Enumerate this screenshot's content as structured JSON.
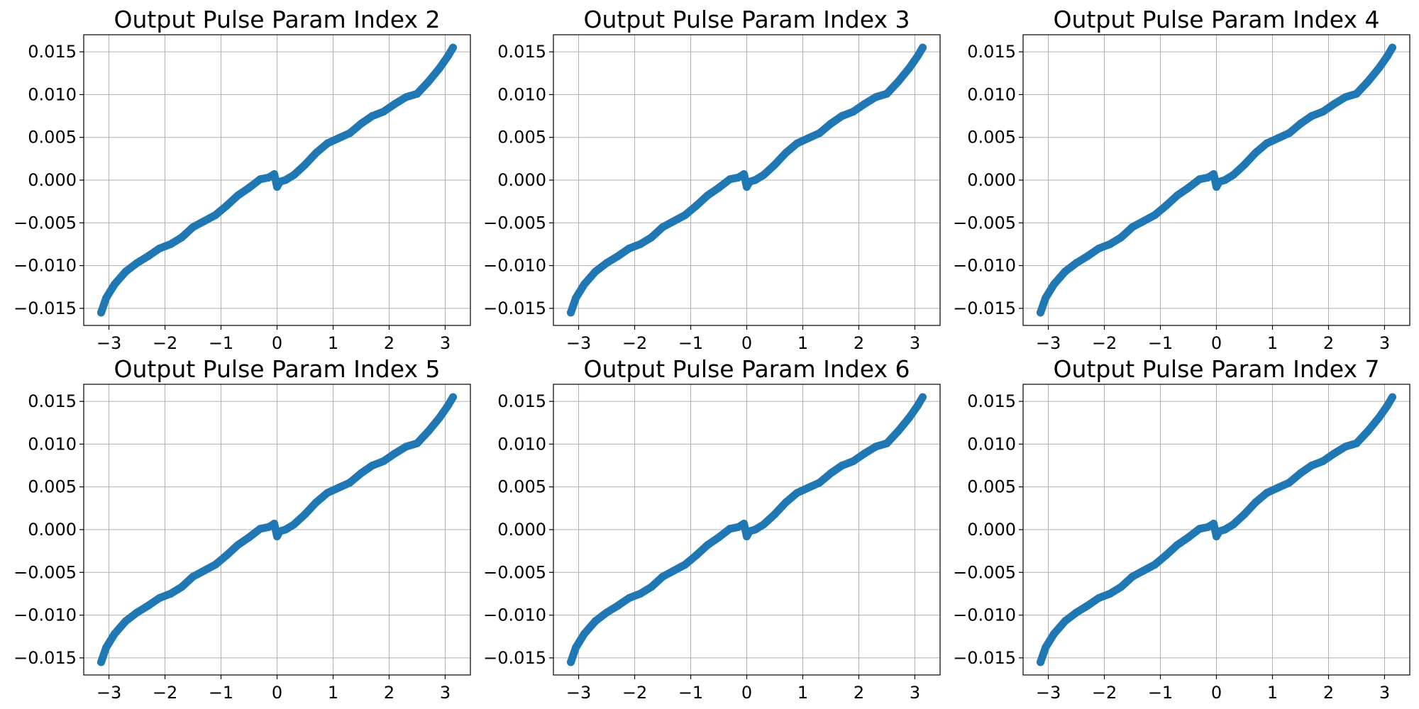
{
  "chart_data": [
    {
      "type": "scatter",
      "title": "Output Pulse Param Index 2",
      "xlim": [
        -3.45,
        3.45
      ],
      "ylim": [
        -0.017,
        0.017
      ],
      "xticks": [
        -3,
        -2,
        -1,
        0,
        1,
        2,
        3
      ],
      "xtick_labels": [
        "−3",
        "−2",
        "−1",
        "0",
        "1",
        "2",
        "3"
      ],
      "yticks": [
        -0.015,
        -0.01,
        -0.005,
        0,
        0.005,
        0.01,
        0.015
      ],
      "ytick_labels": [
        "−0.015",
        "−0.010",
        "−0.005",
        "0.000",
        "0.005",
        "0.010",
        "0.015"
      ],
      "grid": true,
      "series": [
        {
          "color": "#1f77b4",
          "x": [
            -3.14,
            -3.05,
            -2.9,
            -2.7,
            -2.5,
            -2.3,
            -2.1,
            -1.9,
            -1.7,
            -1.5,
            -1.3,
            -1.1,
            -0.9,
            -0.7,
            -0.5,
            -0.3,
            -0.15,
            -0.05,
            0.0,
            0.05,
            0.15,
            0.3,
            0.5,
            0.7,
            0.9,
            1.1,
            1.3,
            1.5,
            1.7,
            1.9,
            2.1,
            2.3,
            2.5,
            2.7,
            2.9,
            3.05,
            3.14
          ],
          "y": [
            -0.0155,
            -0.0138,
            -0.0122,
            -0.0107,
            -0.0097,
            -0.0089,
            -0.008,
            -0.0075,
            -0.0067,
            -0.0055,
            -0.0048,
            -0.0041,
            -0.003,
            -0.0018,
            -0.0009,
            0.0001,
            0.0003,
            0.0007,
            -0.0008,
            -0.0002,
            0.0,
            0.0006,
            0.0018,
            0.0032,
            0.0043,
            0.0049,
            0.0055,
            0.0066,
            0.0075,
            0.008,
            0.0089,
            0.0097,
            0.0101,
            0.0115,
            0.0131,
            0.0145,
            0.0155
          ]
        }
      ]
    },
    {
      "type": "scatter",
      "title": "Output Pulse Param Index 3",
      "xlim": [
        -3.45,
        3.45
      ],
      "ylim": [
        -0.017,
        0.017
      ],
      "xticks": [
        -3,
        -2,
        -1,
        0,
        1,
        2,
        3
      ],
      "xtick_labels": [
        "−3",
        "−2",
        "−1",
        "0",
        "1",
        "2",
        "3"
      ],
      "yticks": [
        -0.015,
        -0.01,
        -0.005,
        0,
        0.005,
        0.01,
        0.015
      ],
      "ytick_labels": [
        "−0.015",
        "−0.010",
        "−0.005",
        "0.000",
        "0.005",
        "0.010",
        "0.015"
      ],
      "grid": true,
      "series": [
        {
          "color": "#1f77b4",
          "x": [
            -3.14,
            -3.05,
            -2.9,
            -2.7,
            -2.5,
            -2.3,
            -2.1,
            -1.9,
            -1.7,
            -1.5,
            -1.3,
            -1.1,
            -0.9,
            -0.7,
            -0.5,
            -0.3,
            -0.15,
            -0.05,
            0.0,
            0.05,
            0.15,
            0.3,
            0.5,
            0.7,
            0.9,
            1.1,
            1.3,
            1.5,
            1.7,
            1.9,
            2.1,
            2.3,
            2.5,
            2.7,
            2.9,
            3.05,
            3.14
          ],
          "y": [
            -0.0155,
            -0.0138,
            -0.0122,
            -0.0107,
            -0.0097,
            -0.0089,
            -0.008,
            -0.0075,
            -0.0067,
            -0.0055,
            -0.0048,
            -0.0041,
            -0.003,
            -0.0018,
            -0.0009,
            0.0001,
            0.0003,
            0.0007,
            -0.0008,
            -0.0002,
            0.0,
            0.0006,
            0.0018,
            0.0032,
            0.0043,
            0.0049,
            0.0055,
            0.0066,
            0.0075,
            0.008,
            0.0089,
            0.0097,
            0.0101,
            0.0115,
            0.0131,
            0.0145,
            0.0155
          ]
        }
      ]
    },
    {
      "type": "scatter",
      "title": "Output Pulse Param Index 4",
      "xlim": [
        -3.45,
        3.45
      ],
      "ylim": [
        -0.017,
        0.017
      ],
      "xticks": [
        -3,
        -2,
        -1,
        0,
        1,
        2,
        3
      ],
      "xtick_labels": [
        "−3",
        "−2",
        "−1",
        "0",
        "1",
        "2",
        "3"
      ],
      "yticks": [
        -0.015,
        -0.01,
        -0.005,
        0,
        0.005,
        0.01,
        0.015
      ],
      "ytick_labels": [
        "−0.015",
        "−0.010",
        "−0.005",
        "0.000",
        "0.005",
        "0.010",
        "0.015"
      ],
      "grid": true,
      "series": [
        {
          "color": "#1f77b4",
          "x": [
            -3.14,
            -3.05,
            -2.9,
            -2.7,
            -2.5,
            -2.3,
            -2.1,
            -1.9,
            -1.7,
            -1.5,
            -1.3,
            -1.1,
            -0.9,
            -0.7,
            -0.5,
            -0.3,
            -0.15,
            -0.05,
            0.0,
            0.05,
            0.15,
            0.3,
            0.5,
            0.7,
            0.9,
            1.1,
            1.3,
            1.5,
            1.7,
            1.9,
            2.1,
            2.3,
            2.5,
            2.7,
            2.9,
            3.05,
            3.14
          ],
          "y": [
            -0.0155,
            -0.0138,
            -0.0122,
            -0.0107,
            -0.0097,
            -0.0089,
            -0.008,
            -0.0075,
            -0.0067,
            -0.0055,
            -0.0048,
            -0.0041,
            -0.003,
            -0.0018,
            -0.0009,
            0.0001,
            0.0003,
            0.0007,
            -0.0008,
            -0.0002,
            0.0,
            0.0006,
            0.0018,
            0.0032,
            0.0043,
            0.0049,
            0.0055,
            0.0066,
            0.0075,
            0.008,
            0.0089,
            0.0097,
            0.0101,
            0.0115,
            0.0131,
            0.0145,
            0.0155
          ]
        }
      ]
    },
    {
      "type": "scatter",
      "title": "Output Pulse Param Index 5",
      "xlim": [
        -3.45,
        3.45
      ],
      "ylim": [
        -0.017,
        0.017
      ],
      "xticks": [
        -3,
        -2,
        -1,
        0,
        1,
        2,
        3
      ],
      "xtick_labels": [
        "−3",
        "−2",
        "−1",
        "0",
        "1",
        "2",
        "3"
      ],
      "yticks": [
        -0.015,
        -0.01,
        -0.005,
        0,
        0.005,
        0.01,
        0.015
      ],
      "ytick_labels": [
        "−0.015",
        "−0.010",
        "−0.005",
        "0.000",
        "0.005",
        "0.010",
        "0.015"
      ],
      "grid": true,
      "series": [
        {
          "color": "#1f77b4",
          "x": [
            -3.14,
            -3.05,
            -2.9,
            -2.7,
            -2.5,
            -2.3,
            -2.1,
            -1.9,
            -1.7,
            -1.5,
            -1.3,
            -1.1,
            -0.9,
            -0.7,
            -0.5,
            -0.3,
            -0.15,
            -0.05,
            0.0,
            0.05,
            0.15,
            0.3,
            0.5,
            0.7,
            0.9,
            1.1,
            1.3,
            1.5,
            1.7,
            1.9,
            2.1,
            2.3,
            2.5,
            2.7,
            2.9,
            3.05,
            3.14
          ],
          "y": [
            -0.0155,
            -0.0138,
            -0.0122,
            -0.0107,
            -0.0097,
            -0.0089,
            -0.008,
            -0.0075,
            -0.0067,
            -0.0055,
            -0.0048,
            -0.0041,
            -0.003,
            -0.0018,
            -0.0009,
            0.0001,
            0.0003,
            0.0007,
            -0.0008,
            -0.0002,
            0.0,
            0.0006,
            0.0018,
            0.0032,
            0.0043,
            0.0049,
            0.0055,
            0.0066,
            0.0075,
            0.008,
            0.0089,
            0.0097,
            0.0101,
            0.0115,
            0.0131,
            0.0145,
            0.0155
          ]
        }
      ]
    },
    {
      "type": "scatter",
      "title": "Output Pulse Param Index 6",
      "xlim": [
        -3.45,
        3.45
      ],
      "ylim": [
        -0.017,
        0.017
      ],
      "xticks": [
        -3,
        -2,
        -1,
        0,
        1,
        2,
        3
      ],
      "xtick_labels": [
        "−3",
        "−2",
        "−1",
        "0",
        "1",
        "2",
        "3"
      ],
      "yticks": [
        -0.015,
        -0.01,
        -0.005,
        0,
        0.005,
        0.01,
        0.015
      ],
      "ytick_labels": [
        "−0.015",
        "−0.010",
        "−0.005",
        "0.000",
        "0.005",
        "0.010",
        "0.015"
      ],
      "grid": true,
      "series": [
        {
          "color": "#1f77b4",
          "x": [
            -3.14,
            -3.05,
            -2.9,
            -2.7,
            -2.5,
            -2.3,
            -2.1,
            -1.9,
            -1.7,
            -1.5,
            -1.3,
            -1.1,
            -0.9,
            -0.7,
            -0.5,
            -0.3,
            -0.15,
            -0.05,
            0.0,
            0.05,
            0.15,
            0.3,
            0.5,
            0.7,
            0.9,
            1.1,
            1.3,
            1.5,
            1.7,
            1.9,
            2.1,
            2.3,
            2.5,
            2.7,
            2.9,
            3.05,
            3.14
          ],
          "y": [
            -0.0155,
            -0.0138,
            -0.0122,
            -0.0107,
            -0.0097,
            -0.0089,
            -0.008,
            -0.0075,
            -0.0067,
            -0.0055,
            -0.0048,
            -0.0041,
            -0.003,
            -0.0018,
            -0.0009,
            0.0001,
            0.0003,
            0.0007,
            -0.0008,
            -0.0002,
            0.0,
            0.0006,
            0.0018,
            0.0032,
            0.0043,
            0.0049,
            0.0055,
            0.0066,
            0.0075,
            0.008,
            0.0089,
            0.0097,
            0.0101,
            0.0115,
            0.0131,
            0.0145,
            0.0155
          ]
        }
      ]
    },
    {
      "type": "scatter",
      "title": "Output Pulse Param Index 7",
      "xlim": [
        -3.45,
        3.45
      ],
      "ylim": [
        -0.017,
        0.017
      ],
      "xticks": [
        -3,
        -2,
        -1,
        0,
        1,
        2,
        3
      ],
      "xtick_labels": [
        "−3",
        "−2",
        "−1",
        "0",
        "1",
        "2",
        "3"
      ],
      "yticks": [
        -0.015,
        -0.01,
        -0.005,
        0,
        0.005,
        0.01,
        0.015
      ],
      "ytick_labels": [
        "−0.015",
        "−0.010",
        "−0.005",
        "0.000",
        "0.005",
        "0.010",
        "0.015"
      ],
      "grid": true,
      "series": [
        {
          "color": "#1f77b4",
          "x": [
            -3.14,
            -3.05,
            -2.9,
            -2.7,
            -2.5,
            -2.3,
            -2.1,
            -1.9,
            -1.7,
            -1.5,
            -1.3,
            -1.1,
            -0.9,
            -0.7,
            -0.5,
            -0.3,
            -0.15,
            -0.05,
            0.0,
            0.05,
            0.15,
            0.3,
            0.5,
            0.7,
            0.9,
            1.1,
            1.3,
            1.5,
            1.7,
            1.9,
            2.1,
            2.3,
            2.5,
            2.7,
            2.9,
            3.05,
            3.14
          ],
          "y": [
            -0.0155,
            -0.0138,
            -0.0122,
            -0.0107,
            -0.0097,
            -0.0089,
            -0.008,
            -0.0075,
            -0.0067,
            -0.0055,
            -0.0048,
            -0.0041,
            -0.003,
            -0.0018,
            -0.0009,
            0.0001,
            0.0003,
            0.0007,
            -0.0008,
            -0.0002,
            0.0,
            0.0006,
            0.0018,
            0.0032,
            0.0043,
            0.0049,
            0.0055,
            0.0066,
            0.0075,
            0.008,
            0.0089,
            0.0097,
            0.0101,
            0.0115,
            0.0131,
            0.0145,
            0.0155
          ]
        }
      ]
    }
  ]
}
